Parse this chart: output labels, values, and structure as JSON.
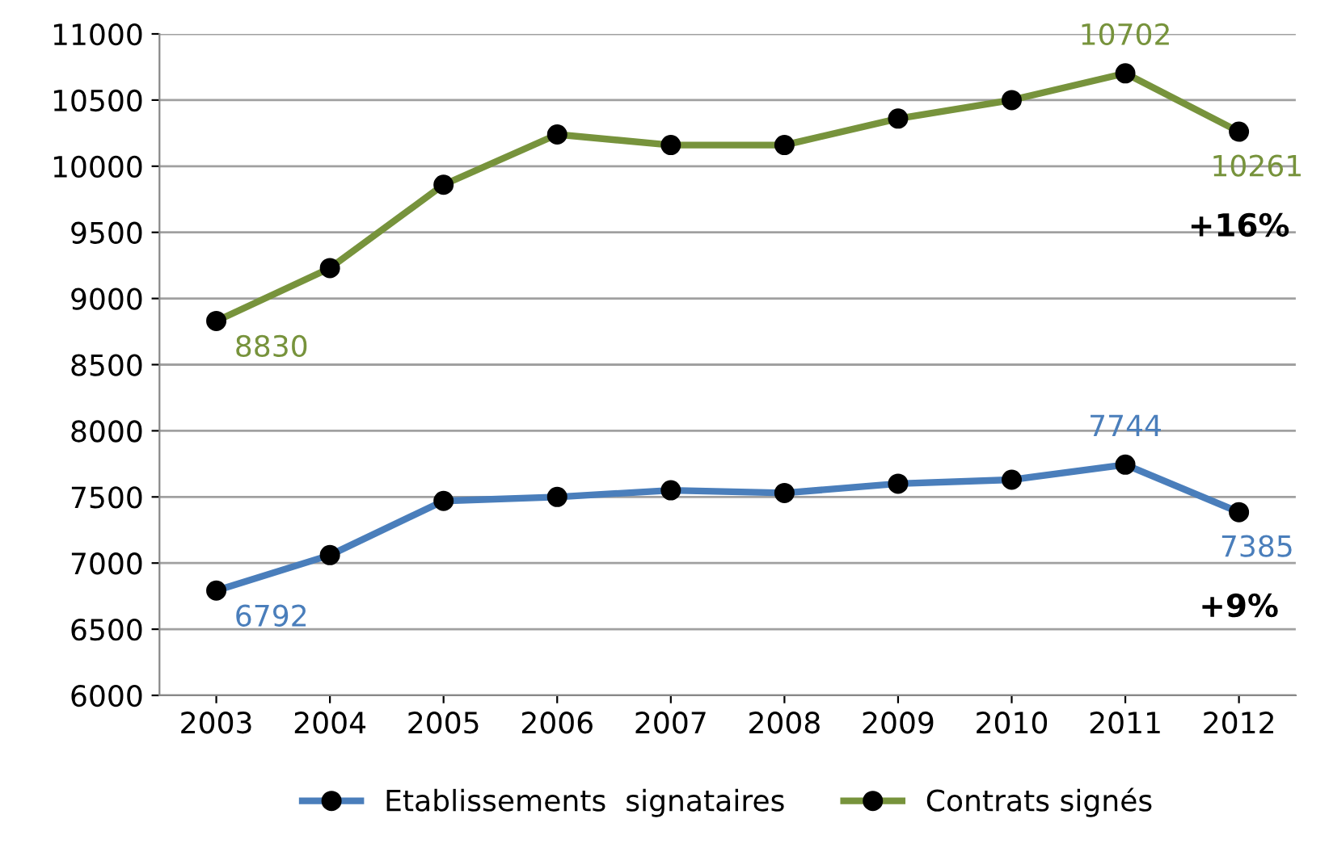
{
  "chart_data": {
    "type": "line",
    "categories": [
      "2003",
      "2004",
      "2005",
      "2006",
      "2007",
      "2008",
      "2009",
      "2010",
      "2011",
      "2012"
    ],
    "series": [
      {
        "name": "Etablissements  signataires",
        "color": "#4a7ebb",
        "values": [
          6792,
          7060,
          7470,
          7500,
          7550,
          7530,
          7600,
          7630,
          7744,
          7385
        ],
        "value_labels": [
          "6792",
          null,
          null,
          null,
          null,
          null,
          null,
          null,
          "7744",
          "7385"
        ]
      },
      {
        "name": "Contrats signés",
        "color": "#77933c",
        "values": [
          8830,
          9230,
          9860,
          10240,
          10160,
          10160,
          10360,
          10500,
          10702,
          10261
        ],
        "value_labels": [
          "8830",
          null,
          null,
          null,
          null,
          null,
          null,
          null,
          "10702",
          "10261"
        ]
      }
    ],
    "annotations": [
      "+9%",
      "+16%"
    ],
    "ylim": [
      6000,
      11000
    ],
    "yticks": [
      6000,
      6500,
      7000,
      7500,
      8000,
      8500,
      9000,
      9500,
      10000,
      10500,
      11000
    ],
    "grid": "y",
    "legend": "bottom",
    "marker": "circle",
    "line_style": "solid"
  }
}
